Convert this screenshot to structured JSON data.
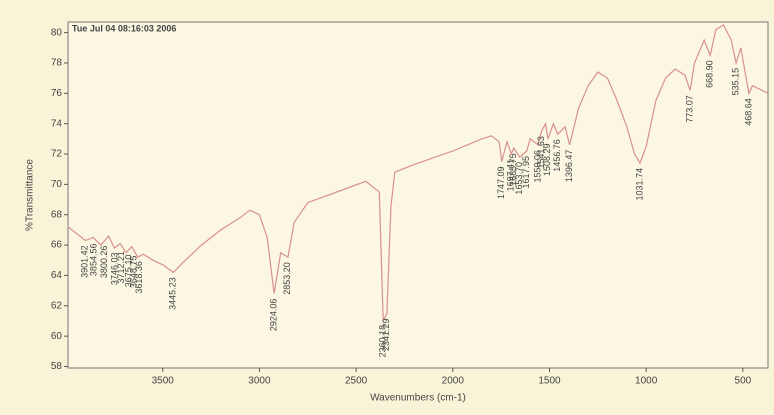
{
  "chart_data": {
    "type": "line",
    "title": "Tue Jul 04 08:16:03 2006",
    "xlabel": "Wavenumbers (cm-1)",
    "ylabel": "%Transmittance",
    "x": [
      3990,
      3950,
      3900,
      3860,
      3820,
      3780,
      3750,
      3720,
      3690,
      3660,
      3630,
      3600,
      3550,
      3500,
      3445,
      3400,
      3300,
      3200,
      3100,
      3050,
      3000,
      2960,
      2924,
      2890,
      2853,
      2820,
      2750,
      2600,
      2450,
      2380,
      2360,
      2341,
      2320,
      2300,
      2200,
      2000,
      1850,
      1800,
      1760,
      1747,
      1720,
      1697,
      1685,
      1654,
      1618,
      1600,
      1559,
      1542,
      1520,
      1508,
      1480,
      1457,
      1420,
      1396,
      1350,
      1300,
      1250,
      1200,
      1150,
      1100,
      1060,
      1032,
      1000,
      950,
      900,
      850,
      800,
      773,
      750,
      700,
      669,
      640,
      600,
      560,
      535,
      510,
      490,
      469,
      450,
      370
    ],
    "series": [
      {
        "color": "#d9908f",
        "values": [
          67.2,
          66.8,
          66.3,
          66.5,
          66.0,
          66.6,
          65.8,
          66.1,
          65.5,
          65.9,
          65.2,
          65.4,
          65.0,
          64.7,
          64.2,
          64.8,
          66.0,
          67.0,
          67.8,
          68.3,
          68.0,
          66.5,
          62.8,
          65.5,
          65.2,
          67.5,
          68.8,
          69.5,
          70.2,
          69.5,
          61.0,
          61.5,
          68.5,
          70.8,
          71.3,
          72.2,
          73.0,
          73.2,
          72.8,
          71.5,
          72.8,
          72.0,
          72.4,
          71.8,
          72.2,
          73.0,
          72.6,
          73.5,
          74.0,
          73.0,
          74.0,
          73.3,
          73.8,
          72.6,
          75.0,
          76.5,
          77.4,
          77.0,
          75.5,
          73.8,
          72.0,
          71.4,
          72.5,
          75.5,
          77.0,
          77.6,
          77.2,
          76.2,
          78.0,
          79.5,
          78.5,
          80.2,
          80.5,
          79.5,
          78.0,
          79.0,
          77.5,
          76.0,
          76.5,
          76.0
        ]
      }
    ],
    "peaks": [
      3901.42,
      3854.56,
      3800.26,
      3746.03,
      3712.21,
      3675.1,
      3648.75,
      3618.36,
      3445.23,
      2924.06,
      2853.2,
      2360.18,
      2341.29,
      1747.09,
      1697.41,
      1685.75,
      1653.7,
      1617.95,
      1559.06,
      1541.63,
      1508.29,
      1456.76,
      1396.47,
      1031.74,
      773.07,
      668.9,
      535.15,
      468.64
    ],
    "peak_labels": [
      "3901.42",
      "3854.56",
      "3800.26",
      "3746.03",
      "3712.21",
      "3675.10",
      "3648.75",
      "3618.36",
      "3445.23",
      "2924.06",
      "2853.20",
      "2360.18",
      "2341.29",
      "1747.09",
      "1697.41",
      "1685.75",
      "1653.70",
      "1617.95",
      "1559.06",
      "1541.63",
      "1508.29",
      "1456.76",
      "1396.47",
      "1031.74",
      "773.07",
      "668.90",
      "535.15",
      "468.64"
    ],
    "xlim": [
      3990,
      370
    ],
    "ylim": [
      57.9,
      80.7
    ],
    "xticks": [
      3500,
      3000,
      2500,
      2000,
      1500,
      1000,
      500
    ],
    "yticks": [
      58,
      60,
      62,
      64,
      66,
      68,
      70,
      72,
      74,
      76,
      78,
      80
    ]
  }
}
